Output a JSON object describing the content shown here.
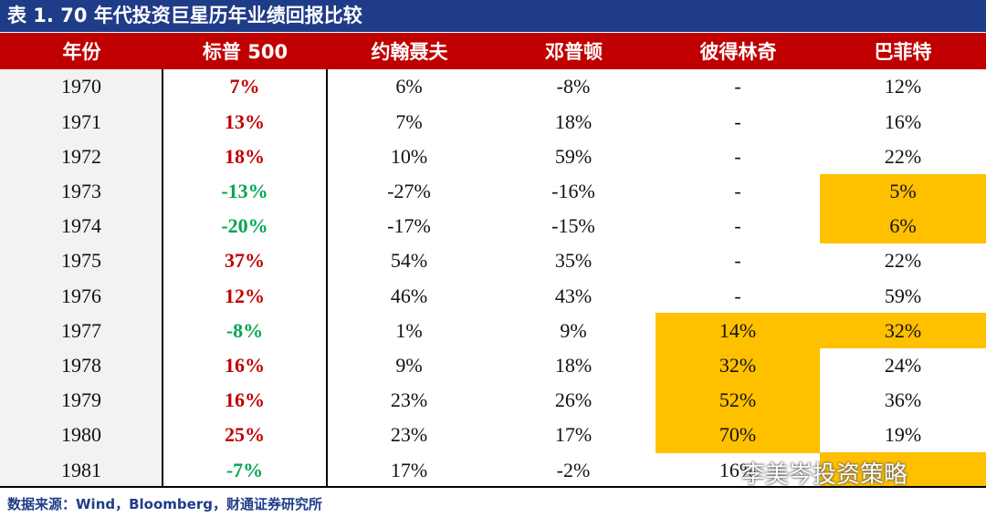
{
  "title": "表 1. 70 年代投资巨星历年业绩回报比较",
  "table": {
    "header": [
      "年份",
      "标普 500",
      "约翰聂夫",
      "邓普顿",
      "彼得林奇",
      "巴菲特"
    ],
    "rows": [
      [
        "1970",
        "7%",
        "6%",
        "-8%",
        "-",
        "12%"
      ],
      [
        "1971",
        "13%",
        "7%",
        "18%",
        "-",
        "16%"
      ],
      [
        "1972",
        "18%",
        "10%",
        "59%",
        "-",
        "22%"
      ],
      [
        "1973",
        "-13%",
        "-27%",
        "-16%",
        "-",
        "5%"
      ],
      [
        "1974",
        "-20%",
        "-17%",
        "-15%",
        "-",
        "6%"
      ],
      [
        "1975",
        "37%",
        "54%",
        "35%",
        "-",
        "22%"
      ],
      [
        "1976",
        "12%",
        "46%",
        "43%",
        "-",
        "59%"
      ],
      [
        "1977",
        "-8%",
        "1%",
        "9%",
        "14%",
        "32%"
      ],
      [
        "1978",
        "16%",
        "9%",
        "18%",
        "32%",
        "24%"
      ],
      [
        "1979",
        "16%",
        "23%",
        "26%",
        "52%",
        "36%"
      ],
      [
        "1980",
        "25%",
        "23%",
        "17%",
        "70%",
        "19%"
      ],
      [
        "1981",
        "-7%",
        "17%",
        "-2%",
        "16%",
        null
      ]
    ]
  },
  "source": "数据来源：Wind，Bloomberg，财通证券研究所",
  "watermark": "李美岑投资策略"
}
